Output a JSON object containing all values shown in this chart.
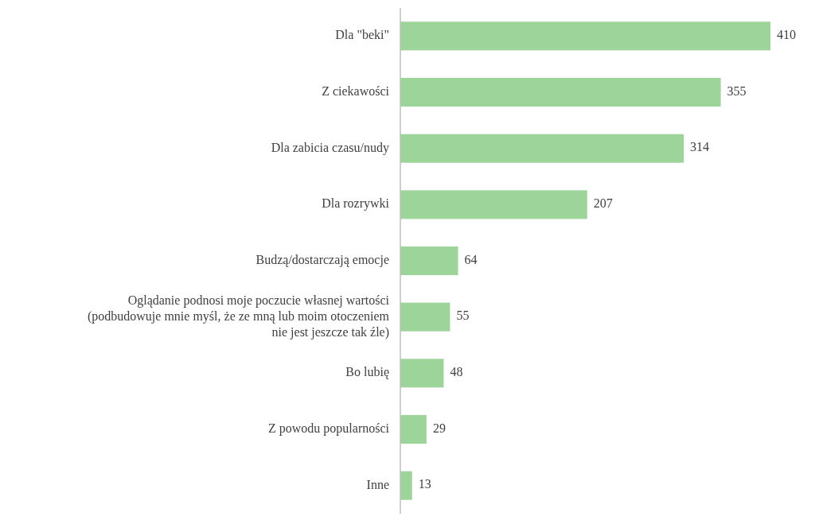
{
  "chart_data": {
    "type": "bar",
    "orientation": "horizontal",
    "categories": [
      "Dla \"beki\"",
      "Z ciekawości",
      "Dla zabicia czasu/nudy",
      "Dla rozrywki",
      "Budzą/dostarczają emocje",
      "Oglądanie podnosi moje poczucie własnej wartości\n(podbudowuje mnie myśl, że ze mną lub moim otoczeniem\nnie jest jeszcze tak źle)",
      "Bo lubię",
      "Z powodu popularności",
      "Inne"
    ],
    "values": [
      410,
      355,
      314,
      207,
      64,
      55,
      48,
      29,
      13
    ],
    "color": "#9dd49a",
    "data_labels": true
  }
}
